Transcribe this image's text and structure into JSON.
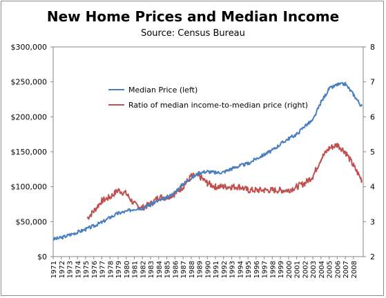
{
  "chart_data": {
    "type": "line",
    "title": "New Home Prices and Median Income",
    "subtitle": "Source: Census Bureau",
    "x": [
      1971,
      1972,
      1973,
      1974,
      1975,
      1976,
      1977,
      1978,
      1979,
      1980,
      1981,
      1982,
      1983,
      1984,
      1985,
      1986,
      1987,
      1988,
      1989,
      1990,
      1991,
      1992,
      1993,
      1994,
      1995,
      1996,
      1997,
      1998,
      1999,
      2000,
      2001,
      2002,
      2003,
      2004,
      2005,
      2006,
      2007,
      2008,
      2009
    ],
    "x_tick_labels": [
      "1971",
      "1972",
      "1973",
      "1974",
      "1975",
      "1976",
      "1977",
      "1978",
      "1979",
      "1980",
      "1981",
      "1982",
      "1983",
      "1984",
      "1985",
      "1986",
      "1987",
      "1988",
      "1989",
      "1990",
      "1991",
      "1992",
      "1993",
      "1994",
      "1995",
      "1996",
      "1997",
      "1998",
      "1999",
      "2000",
      "2001",
      "2002",
      "2003",
      "2004",
      "2005",
      "2006",
      "2007",
      "2008"
    ],
    "y_left_tick_labels": [
      "$0",
      "$50,000",
      "$100,000",
      "$150,000",
      "$200,000",
      "$250,000",
      "$300,000"
    ],
    "y_right_tick_labels": [
      "2",
      "3",
      "4",
      "5",
      "6",
      "7",
      "8"
    ],
    "ylim_left": [
      0,
      300000
    ],
    "ylim_right": [
      2,
      8
    ],
    "xlim": [
      1971,
      2009.2
    ],
    "grid": false,
    "legend_position": "top-left inside plot",
    "series": [
      {
        "name": "Median Price (left)",
        "axis": "left",
        "color": "#4a7ebf",
        "x": [
          1971,
          1972,
          1973,
          1974,
          1975,
          1976,
          1977,
          1978,
          1979,
          1980,
          1981,
          1982,
          1983,
          1984,
          1985,
          1986,
          1987,
          1988,
          1989,
          1990,
          1991,
          1992,
          1993,
          1994,
          1995,
          1996,
          1997,
          1998,
          1999,
          2000,
          2001,
          2002,
          2003,
          2004,
          2005,
          2006,
          2007,
          2008,
          2009
        ],
        "values": [
          25000,
          27000,
          31000,
          35000,
          39000,
          44000,
          49000,
          56000,
          62000,
          64500,
          68500,
          69500,
          75000,
          80000,
          84000,
          92000,
          104000,
          112000,
          120000,
          122000,
          120000,
          121000,
          126000,
          130000,
          133000,
          140000,
          146000,
          152000,
          161000,
          169000,
          175000,
          187000,
          195000,
          221000,
          240000,
          246000,
          247000,
          232000,
          215000
        ]
      },
      {
        "name": "Ratio of median income-to-median price (right)",
        "axis": "right",
        "color": "#c0504d",
        "x": [
          1975.2,
          1976,
          1977,
          1978,
          1979,
          1980,
          1981,
          1982,
          1983,
          1984,
          1985,
          1986,
          1987,
          1988,
          1989,
          1990,
          1991,
          1992,
          1993,
          1994,
          1995,
          1996,
          1997,
          1998,
          1999,
          2000,
          2001,
          2002,
          2003,
          2004,
          2005,
          2006,
          2007,
          2008,
          2009
        ],
        "values": [
          3.1,
          3.3,
          3.6,
          3.7,
          3.9,
          3.8,
          3.5,
          3.4,
          3.5,
          3.7,
          3.7,
          3.8,
          4.0,
          4.3,
          4.3,
          4.1,
          4.0,
          4.0,
          4.0,
          4.0,
          3.9,
          3.9,
          3.9,
          3.9,
          3.9,
          3.9,
          4.0,
          4.1,
          4.3,
          4.8,
          5.1,
          5.2,
          5.0,
          4.6,
          4.2
        ]
      }
    ]
  },
  "colors": {
    "price_line": "#4a7ebf",
    "ratio_line": "#c0504d",
    "axis": "#868686"
  }
}
